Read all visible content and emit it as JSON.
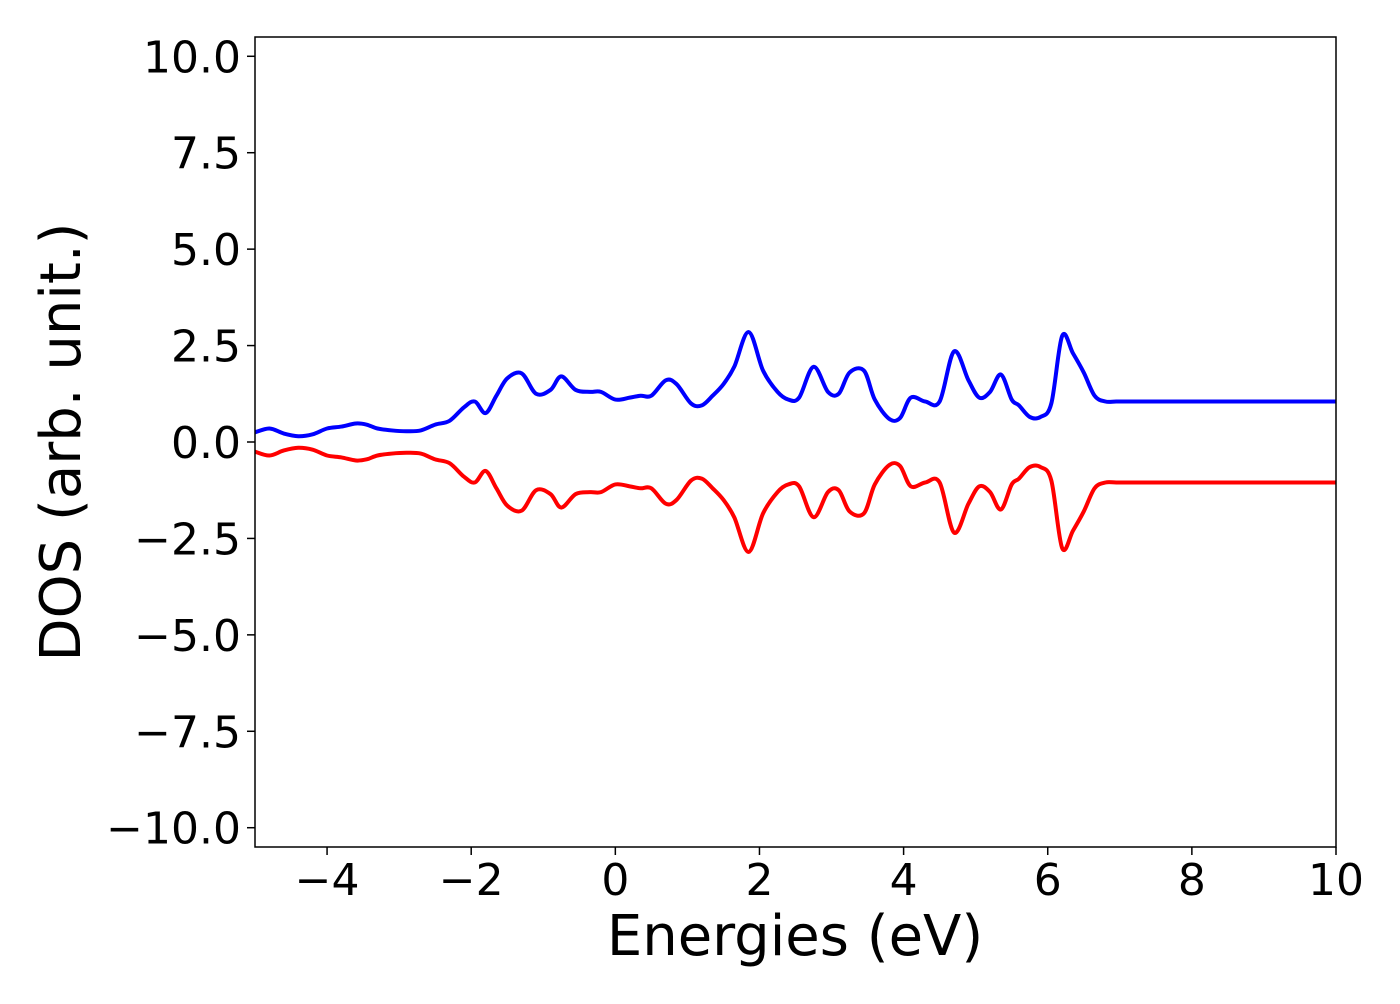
{
  "chart_data": {
    "type": "line",
    "title": "",
    "xlabel": "Energies (eV)",
    "ylabel": "DOS (arb. unit.)",
    "xlim": [
      -5,
      10
    ],
    "ylim": [
      -10.5,
      10.5
    ],
    "x_ticks": [
      -4,
      -2,
      0,
      2,
      4,
      6,
      8,
      10
    ],
    "x_tick_labels": [
      "−4",
      "−2",
      "0",
      "2",
      "4",
      "6",
      "8",
      "10"
    ],
    "y_ticks": [
      10.0,
      7.5,
      5.0,
      2.5,
      0.0,
      -2.5,
      -5.0,
      -7.5,
      -10.0
    ],
    "y_tick_labels": [
      "10.0",
      "7.5",
      "5.0",
      "2.5",
      "0.0",
      "−2.5",
      "−5.0",
      "−7.5",
      "−10.0"
    ],
    "grid": false,
    "legend": "none",
    "series": [
      {
        "color": "#0000ff",
        "x": [
          -5.0,
          -4.8,
          -4.6,
          -4.4,
          -4.2,
          -4.0,
          -3.8,
          -3.6,
          -3.45,
          -3.3,
          -3.1,
          -2.9,
          -2.7,
          -2.5,
          -2.3,
          -2.1,
          -1.95,
          -1.8,
          -1.65,
          -1.5,
          -1.3,
          -1.1,
          -0.9,
          -0.75,
          -0.55,
          -0.35,
          -0.2,
          0.0,
          0.2,
          0.35,
          0.5,
          0.7,
          0.85,
          1.05,
          1.2,
          1.35,
          1.5,
          1.65,
          1.85,
          2.05,
          2.25,
          2.4,
          2.55,
          2.75,
          2.95,
          3.1,
          3.25,
          3.45,
          3.6,
          3.8,
          3.95,
          4.1,
          4.3,
          4.5,
          4.7,
          4.9,
          5.05,
          5.2,
          5.35,
          5.5,
          5.6,
          5.75,
          5.9,
          6.05,
          6.2,
          6.35,
          6.5,
          6.65,
          6.8,
          6.95,
          7.15,
          7.35,
          7.6,
          7.75,
          7.95,
          8.15,
          8.3,
          8.45,
          8.65,
          8.8,
          9.0,
          9.15,
          9.3,
          9.45,
          9.65,
          9.8,
          10.0
        ],
        "values": [
          0.25,
          0.35,
          0.22,
          0.15,
          0.2,
          0.35,
          0.4,
          0.48,
          0.45,
          0.35,
          0.3,
          0.28,
          0.3,
          0.45,
          0.55,
          0.9,
          1.05,
          0.75,
          1.2,
          1.65,
          1.78,
          1.25,
          1.35,
          1.7,
          1.35,
          1.3,
          1.3,
          1.1,
          1.15,
          1.2,
          1.2,
          1.6,
          1.5,
          1.0,
          0.95,
          1.2,
          1.5,
          1.95,
          2.85,
          1.85,
          1.3,
          1.1,
          1.15,
          1.95,
          1.3,
          1.25,
          1.8,
          1.85,
          1.1,
          0.6,
          0.62,
          1.15,
          1.05,
          1.05,
          2.35,
          1.6,
          1.15,
          1.3,
          1.75,
          1.1,
          0.95,
          0.65,
          0.65,
          1.0,
          2.75,
          2.3,
          1.8,
          1.2,
          1.05,
          1.05,
          1.05,
          1.05,
          1.05,
          1.05,
          1.05,
          1.05,
          1.05,
          1.05,
          1.05,
          1.05,
          1.05,
          1.05,
          1.05,
          1.05,
          1.05,
          1.05,
          1.05
        ]
      },
      {
        "color": "#ff0000",
        "x": [
          -5.0,
          -4.8,
          -4.6,
          -4.4,
          -4.2,
          -4.0,
          -3.8,
          -3.6,
          -3.45,
          -3.3,
          -3.1,
          -2.9,
          -2.7,
          -2.5,
          -2.3,
          -2.1,
          -1.95,
          -1.8,
          -1.65,
          -1.5,
          -1.3,
          -1.1,
          -0.9,
          -0.75,
          -0.55,
          -0.35,
          -0.2,
          0.0,
          0.2,
          0.35,
          0.5,
          0.7,
          0.85,
          1.05,
          1.2,
          1.35,
          1.5,
          1.65,
          1.85,
          2.05,
          2.25,
          2.4,
          2.55,
          2.75,
          2.95,
          3.1,
          3.25,
          3.45,
          3.6,
          3.8,
          3.95,
          4.1,
          4.3,
          4.5,
          4.7,
          4.9,
          5.05,
          5.2,
          5.35,
          5.5,
          5.6,
          5.75,
          5.9,
          6.05,
          6.2,
          6.35,
          6.5,
          6.65,
          6.8,
          6.95,
          7.15,
          7.35,
          7.6,
          7.75,
          7.95,
          8.15,
          8.3,
          8.45,
          8.65,
          8.8,
          9.0,
          9.15,
          9.3,
          9.45,
          9.65,
          9.8,
          10.0
        ],
        "values": [
          -0.25,
          -0.35,
          -0.22,
          -0.15,
          -0.2,
          -0.35,
          -0.4,
          -0.48,
          -0.45,
          -0.35,
          -0.3,
          -0.28,
          -0.3,
          -0.45,
          -0.55,
          -0.9,
          -1.05,
          -0.75,
          -1.2,
          -1.65,
          -1.78,
          -1.25,
          -1.35,
          -1.7,
          -1.35,
          -1.3,
          -1.3,
          -1.1,
          -1.15,
          -1.2,
          -1.2,
          -1.6,
          -1.5,
          -1.0,
          -0.95,
          -1.2,
          -1.5,
          -1.95,
          -2.85,
          -1.85,
          -1.3,
          -1.1,
          -1.15,
          -1.95,
          -1.3,
          -1.25,
          -1.8,
          -1.85,
          -1.1,
          -0.6,
          -0.62,
          -1.15,
          -1.05,
          -1.05,
          -2.35,
          -1.6,
          -1.15,
          -1.3,
          -1.75,
          -1.1,
          -0.95,
          -0.65,
          -0.65,
          -1.0,
          -2.75,
          -2.3,
          -1.8,
          -1.2,
          -1.05,
          -1.05,
          -1.05,
          -1.05,
          -1.05,
          -1.05,
          -1.05,
          -1.05,
          -1.05,
          -1.05,
          -1.05,
          -1.05,
          -1.05,
          -1.05,
          -1.05,
          -1.05,
          -1.05,
          -1.05,
          -1.05
        ]
      }
    ]
  }
}
